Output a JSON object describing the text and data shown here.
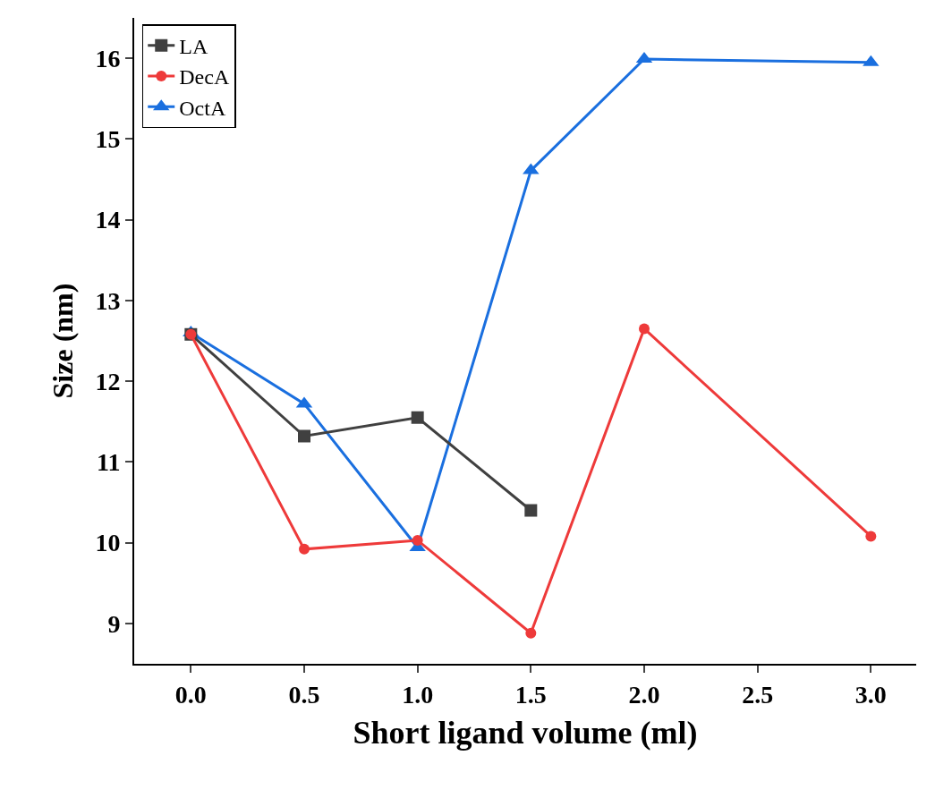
{
  "chart_data": {
    "type": "line",
    "xlabel": "Short ligand volume (ml)",
    "ylabel": "Size (nm)",
    "series": [
      {
        "name": "LA",
        "color": "#404040",
        "marker": "square",
        "x": [
          0,
          0.5,
          1.0,
          1.5
        ],
        "values": [
          12.58,
          11.32,
          11.55,
          10.4
        ]
      },
      {
        "name": "DecA",
        "color": "#ee3a3a",
        "marker": "circle",
        "x": [
          0,
          0.5,
          1.0,
          1.5,
          2.0,
          3.0
        ],
        "values": [
          12.58,
          9.92,
          10.03,
          8.88,
          12.65,
          10.08
        ]
      },
      {
        "name": "OctA",
        "color": "#1a6fdf",
        "marker": "triangle",
        "x": [
          0,
          0.5,
          1.0,
          1.5,
          2.0,
          3.0
        ],
        "values": [
          12.6,
          11.72,
          9.94,
          14.61,
          15.99,
          15.95
        ]
      }
    ],
    "xlim": [
      -0.25,
      3.2
    ],
    "ylim": [
      8.5,
      16.5
    ],
    "xticks": [
      {
        "value": 0,
        "label": "0.0"
      },
      {
        "value": 0.5,
        "label": "0.5"
      },
      {
        "value": 1,
        "label": "1.0"
      },
      {
        "value": 1.5,
        "label": "1.5"
      },
      {
        "value": 2,
        "label": "2.0"
      },
      {
        "value": 2.5,
        "label": "2.5"
      },
      {
        "value": 3,
        "label": "3.0"
      }
    ],
    "yticks": [
      9,
      10,
      11,
      12,
      13,
      14,
      15,
      16
    ],
    "legend": "top left",
    "line_style": "solid"
  }
}
